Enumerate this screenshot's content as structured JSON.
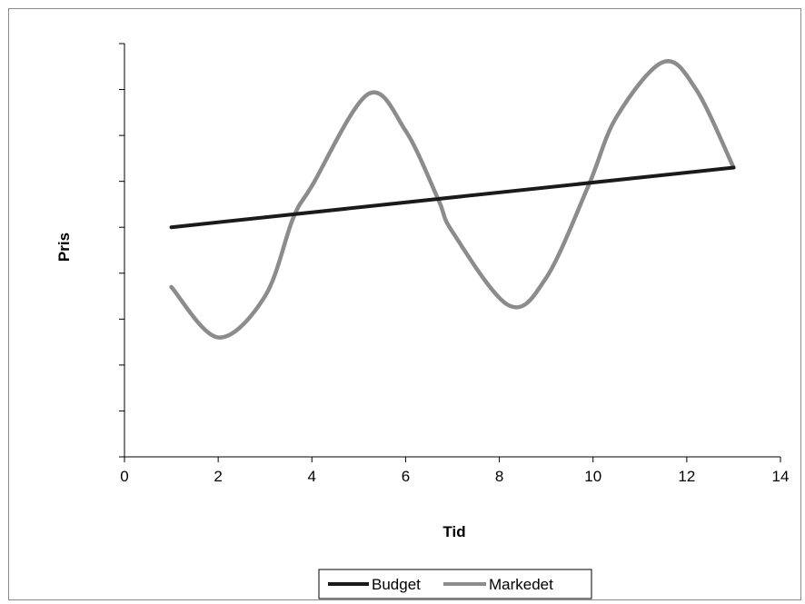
{
  "chart_data": {
    "type": "line",
    "title": "",
    "xlabel": "Tid",
    "ylabel": "Pris",
    "xlim": [
      0,
      14
    ],
    "ylim": [
      0,
      9
    ],
    "x_ticks": [
      0,
      2,
      4,
      6,
      8,
      10,
      12,
      14
    ],
    "x_tick_labels": [
      "0",
      "2",
      "4",
      "6",
      "8",
      "10",
      "12",
      "14"
    ],
    "y_ticks": [
      0,
      1,
      2,
      3,
      4,
      5,
      6,
      7,
      8,
      9
    ],
    "y_tick_labels_visible": false,
    "grid": false,
    "legend": {
      "placement": "bottom-center",
      "entries": [
        "Budget",
        "Markedet"
      ]
    },
    "series": [
      {
        "name": "Budget",
        "color": "#1a1a1a",
        "x": [
          1,
          13
        ],
        "y": [
          5.0,
          6.3
        ]
      },
      {
        "name": "Markedet",
        "color": "#8c8c8c",
        "x": [
          1,
          2,
          3,
          3.6,
          4,
          5.2,
          6,
          6.7,
          7,
          8.2,
          9,
          9.9,
          10.5,
          11.5,
          12.2,
          13
        ],
        "y": [
          3.7,
          2.6,
          3.5,
          5.2,
          5.9,
          7.9,
          7.1,
          5.6,
          4.9,
          3.3,
          3.9,
          5.9,
          7.4,
          8.6,
          8.0,
          6.3
        ]
      }
    ]
  }
}
